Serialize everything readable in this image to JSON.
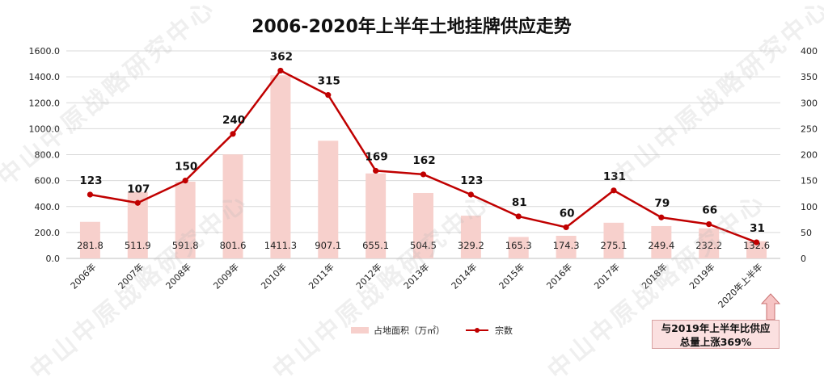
{
  "chart_data": {
    "type": "bar+line",
    "title": "2006-2020年上半年土地挂牌供应走势",
    "categories": [
      "2006年",
      "2007年",
      "2008年",
      "2009年",
      "2010年",
      "2011年",
      "2012年",
      "2013年",
      "2014年",
      "2015年",
      "2016年",
      "2017年",
      "2018年",
      "2019年",
      "2020年上半年"
    ],
    "series": [
      {
        "name": "占地面积（万㎡）",
        "type": "bar",
        "axis": "left",
        "values": [
          281.8,
          511.9,
          591.8,
          801.6,
          1411.3,
          907.1,
          655.1,
          504.5,
          329.2,
          165.3,
          174.3,
          275.1,
          249.4,
          232.2,
          132.6
        ],
        "labels": [
          "281.8",
          "511.9",
          "591.8",
          "801.6",
          "1411.3",
          "907.1",
          "655.1",
          "504.5",
          "329.2",
          "165.3",
          "174.3",
          "275.1",
          "249.4",
          "232.2",
          "132.6"
        ],
        "color": "#f7d0cc"
      },
      {
        "name": "宗数",
        "type": "line",
        "axis": "right",
        "values": [
          123,
          107,
          150,
          240,
          362,
          315,
          169,
          162,
          123,
          81,
          60,
          131,
          79,
          66,
          31
        ],
        "labels": [
          "123",
          "107",
          "150",
          "240",
          "362",
          "315",
          "169",
          "162",
          "123",
          "81",
          "60",
          "131",
          "79",
          "66",
          "31"
        ],
        "color": "#c00000"
      }
    ],
    "y_left": {
      "min": 0,
      "max": 1600,
      "step": 200,
      "ticks": [
        "0.0",
        "200.0",
        "400.0",
        "600.0",
        "800.0",
        "1000.0",
        "1200.0",
        "1400.0",
        "1600.0"
      ]
    },
    "y_right": {
      "min": 0,
      "max": 400,
      "step": 50,
      "ticks": [
        "0",
        "50",
        "100",
        "150",
        "200",
        "250",
        "300",
        "350",
        "400"
      ]
    },
    "grid": true,
    "legend_position": "bottom-center"
  },
  "callout": {
    "line1": "与2019年上半年比供应",
    "line2": "总量上涨369%",
    "color": "#f6c4c4"
  },
  "watermark": "中山中原战略研究中心"
}
